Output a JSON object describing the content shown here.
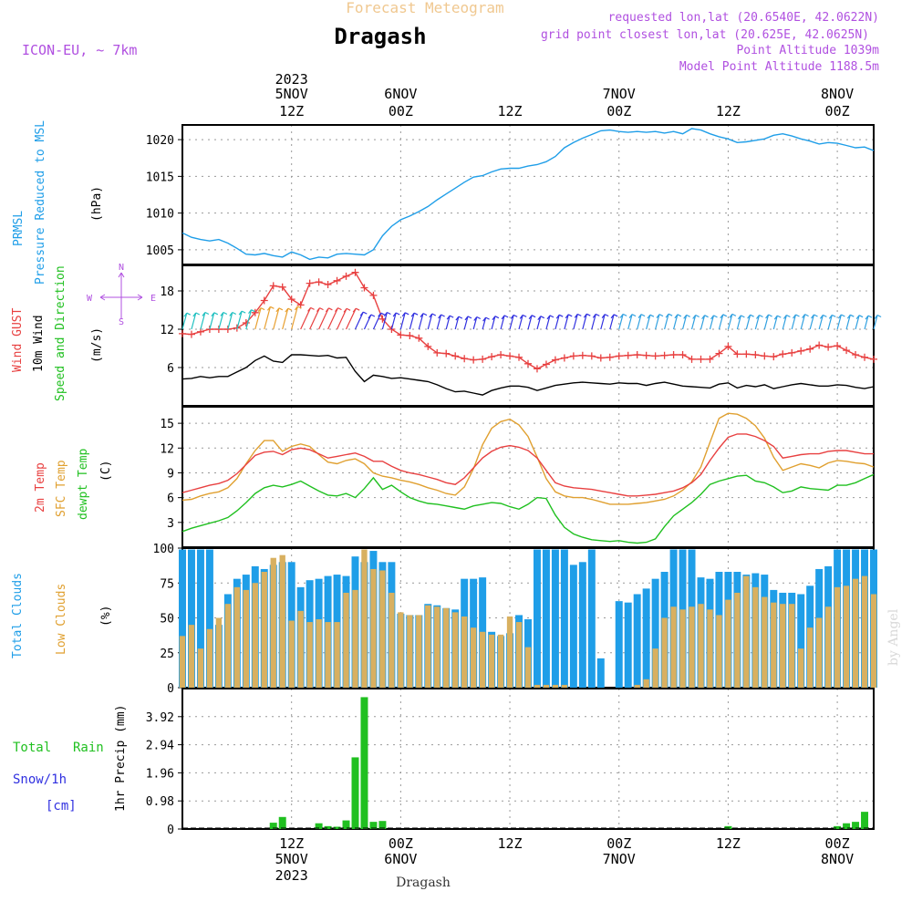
{
  "header": {
    "product_title": "Forecast Meteogram",
    "location": "Dragash",
    "model": "ICON-EU, ~ 7km",
    "requested": "requested lon,lat (20.6540E, 42.0622N)",
    "grid": "grid point closest lon,lat (20.625E, 42.0625N)",
    "point_alt": "Point Altitude 1039m",
    "model_alt": "Model Point Altitude 1188.5m",
    "credit": "by Angel",
    "footer_location": "Dragash"
  },
  "colors": {
    "pressure": "#1f9ee8",
    "gust": "#e84040",
    "wind": "#000000",
    "temp": "#e84040",
    "sfc": "#e0a030",
    "dew": "#20c020",
    "clouds_total": "#1f9ee8",
    "clouds_low": "#d8b060",
    "rain": "#20c020",
    "snow": "#3030e0",
    "header_purple": "#b050e0",
    "header_orange": "#f0c890"
  },
  "top_axis": [
    {
      "t": 12,
      "l1": "2023",
      "l2": "5NOV",
      "l3": "12Z"
    },
    {
      "t": 24,
      "l1": "",
      "l2": "6NOV",
      "l3": "00Z"
    },
    {
      "t": 36,
      "l1": "",
      "l2": "",
      "l3": "12Z"
    },
    {
      "t": 48,
      "l1": "",
      "l2": "7NOV",
      "l3": "00Z"
    },
    {
      "t": 60,
      "l1": "",
      "l2": "",
      "l3": "12Z"
    },
    {
      "t": 72,
      "l1": "",
      "l2": "8NOV",
      "l3": "00Z"
    }
  ],
  "bottom_axis": [
    {
      "t": 12,
      "l1": "12Z",
      "l2": "5NOV",
      "l3": "2023"
    },
    {
      "t": 24,
      "l1": "00Z",
      "l2": "6NOV",
      "l3": ""
    },
    {
      "t": 36,
      "l1": "12Z",
      "l2": "",
      "l3": ""
    },
    {
      "t": 48,
      "l1": "00Z",
      "l2": "7NOV",
      "l3": ""
    },
    {
      "t": 60,
      "l1": "12Z",
      "l2": "",
      "l3": ""
    },
    {
      "t": 72,
      "l1": "00Z",
      "l2": "8NOV",
      "l3": ""
    }
  ],
  "panels": {
    "pressure": {
      "labels": [
        "PRMSL",
        "Pressure Reduced to MSL",
        "(hPa)"
      ]
    },
    "wind": {
      "labels": [
        "Wind GUST",
        "10m Wind",
        "Speed and Direction",
        "(m/s)"
      ],
      "compass": [
        "N",
        "W",
        "E",
        "S"
      ]
    },
    "temp": {
      "labels": [
        "2m Temp",
        "SFC Temp",
        "dewpt Temp",
        "(C)"
      ]
    },
    "clouds": {
      "labels": [
        "Total Clouds",
        "Low Clouds",
        "(%)"
      ]
    },
    "precip": {
      "labels": [
        "Total",
        "Rain",
        "Snow/1h",
        "[cm]",
        "1hr Precip (mm)"
      ]
    }
  },
  "chart_data": [
    {
      "type": "line",
      "title": "PRMSL Pressure Reduced to MSL",
      "ylabel": "(hPa)",
      "x_unit": "forecast hour from 2023-11-05 00Z",
      "xlim": [
        0,
        76
      ],
      "ylim": [
        1003,
        1022
      ],
      "yticks": [
        1005,
        1010,
        1015,
        1020
      ],
      "grid": true,
      "x": [
        0,
        1,
        2,
        3,
        4,
        5,
        6,
        7,
        8,
        9,
        10,
        11,
        12,
        13,
        14,
        15,
        16,
        17,
        18,
        19,
        20,
        21,
        22,
        23,
        24,
        25,
        26,
        27,
        28,
        29,
        30,
        31,
        32,
        33,
        34,
        35,
        36,
        37,
        38,
        39,
        40,
        41,
        42,
        43,
        44,
        45,
        46,
        47,
        48,
        49,
        50,
        51,
        52,
        53,
        54,
        55,
        56,
        57,
        58,
        59,
        60,
        61,
        62,
        63,
        64,
        65,
        66,
        67,
        68,
        69,
        70,
        71,
        72,
        73,
        74,
        75,
        76
      ],
      "series": [
        {
          "name": "PRMSL",
          "values": [
            1007.3,
            1006.7,
            1006.4,
            1006.2,
            1006.4,
            1005.9,
            1005.2,
            1004.4,
            1004.3,
            1004.5,
            1004.2,
            1004.0,
            1004.7,
            1004.3,
            1003.7,
            1004.0,
            1003.9,
            1004.4,
            1004.5,
            1004.4,
            1004.3,
            1005.0,
            1006.9,
            1008.2,
            1009.1,
            1009.6,
            1010.2,
            1010.9,
            1011.8,
            1012.6,
            1013.4,
            1014.2,
            1014.9,
            1015.1,
            1015.6,
            1016.0,
            1016.1,
            1016.1,
            1016.4,
            1016.6,
            1017.0,
            1017.7,
            1018.9,
            1019.6,
            1020.2,
            1020.7,
            1021.2,
            1021.3,
            1021.1,
            1021.0,
            1021.1,
            1021.0,
            1021.1,
            1020.9,
            1021.1,
            1020.8,
            1021.5,
            1021.3,
            1020.8,
            1020.4,
            1020.1,
            1019.6,
            1019.7,
            1019.9,
            1020.1,
            1020.6,
            1020.8,
            1020.5,
            1020.1,
            1019.8,
            1019.4,
            1019.6,
            1019.5,
            1019.2,
            1018.9,
            1019.0,
            1018.5
          ]
        }
      ]
    },
    {
      "type": "line",
      "title": "Wind GUST / 10m Wind Speed and Direction",
      "ylabel": "(m/s)",
      "xlim": [
        0,
        76
      ],
      "ylim": [
        0,
        22
      ],
      "yticks": [
        6,
        12,
        18
      ],
      "grid": true,
      "x": [
        0,
        1,
        2,
        3,
        4,
        5,
        6,
        7,
        8,
        9,
        10,
        11,
        12,
        13,
        14,
        15,
        16,
        17,
        18,
        19,
        20,
        21,
        22,
        23,
        24,
        25,
        26,
        27,
        28,
        29,
        30,
        31,
        32,
        33,
        34,
        35,
        36,
        37,
        38,
        39,
        40,
        41,
        42,
        43,
        44,
        45,
        46,
        47,
        48,
        49,
        50,
        51,
        52,
        53,
        54,
        55,
        56,
        57,
        58,
        59,
        60,
        61,
        62,
        63,
        64,
        65,
        66,
        67,
        68,
        69,
        70,
        71,
        72,
        73,
        74,
        75,
        76
      ],
      "series": [
        {
          "name": "Wind GUST",
          "values": [
            11.3,
            11.2,
            11.6,
            12.0,
            12.0,
            12.0,
            12.2,
            13.0,
            14.6,
            16.5,
            18.8,
            18.6,
            16.7,
            15.8,
            19.2,
            19.4,
            19.0,
            19.6,
            20.3,
            20.9,
            18.5,
            17.3,
            13.6,
            12.0,
            11.1,
            11.0,
            10.6,
            9.3,
            8.3,
            8.2,
            7.8,
            7.4,
            7.2,
            7.3,
            7.7,
            8.0,
            7.8,
            7.6,
            6.6,
            5.8,
            6.5,
            7.2,
            7.5,
            7.8,
            7.9,
            7.8,
            7.5,
            7.6,
            7.8,
            7.9,
            8.0,
            7.9,
            7.8,
            7.9,
            8.0,
            8.0,
            7.3,
            7.3,
            7.3,
            8.2,
            9.3,
            8.1,
            8.1,
            8.0,
            7.8,
            7.7,
            8.1,
            8.3,
            8.6,
            8.9,
            9.5,
            9.2,
            9.4,
            8.7,
            8.0,
            7.6,
            7.3
          ]
        },
        {
          "name": "10m Wind",
          "values": [
            4.2,
            4.3,
            4.6,
            4.4,
            4.6,
            4.6,
            5.3,
            6.0,
            7.1,
            7.8,
            7.0,
            6.8,
            8.0,
            8.0,
            7.9,
            7.8,
            7.9,
            7.5,
            7.6,
            5.4,
            3.8,
            4.8,
            4.6,
            4.3,
            4.4,
            4.2,
            4.0,
            3.8,
            3.3,
            2.7,
            2.2,
            2.3,
            2.0,
            1.7,
            2.4,
            2.8,
            3.1,
            3.1,
            2.9,
            2.4,
            2.8,
            3.2,
            3.4,
            3.6,
            3.7,
            3.6,
            3.5,
            3.4,
            3.6,
            3.5,
            3.5,
            3.2,
            3.5,
            3.7,
            3.4,
            3.1,
            3.0,
            2.9,
            2.8,
            3.4,
            3.6,
            2.8,
            3.2,
            3.0,
            3.3,
            2.7,
            3.0,
            3.3,
            3.5,
            3.3,
            3.1,
            3.1,
            3.3,
            3.2,
            2.9,
            2.7,
            3.0
          ]
        }
      ]
    },
    {
      "type": "line",
      "title": "2m Temp / SFC Temp / dewpt Temp",
      "ylabel": "(C)",
      "xlim": [
        0,
        76
      ],
      "ylim": [
        0,
        17
      ],
      "yticks": [
        3,
        6,
        9,
        12,
        15
      ],
      "grid": true,
      "x": [
        0,
        1,
        2,
        3,
        4,
        5,
        6,
        7,
        8,
        9,
        10,
        11,
        12,
        13,
        14,
        15,
        16,
        17,
        18,
        19,
        20,
        21,
        22,
        23,
        24,
        25,
        26,
        27,
        28,
        29,
        30,
        31,
        32,
        33,
        34,
        35,
        36,
        37,
        38,
        39,
        40,
        41,
        42,
        43,
        44,
        45,
        46,
        47,
        48,
        49,
        50,
        51,
        52,
        53,
        54,
        55,
        56,
        57,
        58,
        59,
        60,
        61,
        62,
        63,
        64,
        65,
        66,
        67,
        68,
        69,
        70,
        71,
        72,
        73,
        74,
        75,
        76
      ],
      "series": [
        {
          "name": "2m Temp",
          "values": [
            6.6,
            6.9,
            7.2,
            7.5,
            7.7,
            8.1,
            8.9,
            10.0,
            11.1,
            11.5,
            11.6,
            11.2,
            11.8,
            12.0,
            11.8,
            11.3,
            10.8,
            11.0,
            11.2,
            11.4,
            11.0,
            10.4,
            10.4,
            9.8,
            9.3,
            9.0,
            8.8,
            8.5,
            8.2,
            7.8,
            7.6,
            8.4,
            9.6,
            10.8,
            11.6,
            12.1,
            12.3,
            12.1,
            11.7,
            10.8,
            9.3,
            7.8,
            7.4,
            7.2,
            7.1,
            7.0,
            6.8,
            6.6,
            6.4,
            6.2,
            6.2,
            6.3,
            6.4,
            6.6,
            6.8,
            7.2,
            7.8,
            8.8,
            10.5,
            12.0,
            13.3,
            13.7,
            13.7,
            13.4,
            12.9,
            12.2,
            10.8,
            11.0,
            11.2,
            11.3,
            11.3,
            11.6,
            11.7,
            11.7,
            11.5,
            11.3,
            11.3
          ]
        },
        {
          "name": "SFC Temp",
          "values": [
            5.7,
            5.8,
            6.2,
            6.5,
            6.7,
            7.2,
            8.3,
            10.1,
            11.7,
            12.9,
            12.9,
            11.6,
            12.2,
            12.5,
            12.2,
            11.2,
            10.3,
            10.1,
            10.5,
            10.7,
            10.1,
            9.0,
            8.6,
            8.4,
            8.1,
            7.9,
            7.6,
            7.2,
            6.9,
            6.5,
            6.3,
            7.3,
            9.5,
            12.4,
            14.4,
            15.2,
            15.5,
            14.8,
            13.4,
            10.9,
            8.3,
            6.7,
            6.2,
            6.0,
            6.0,
            5.8,
            5.5,
            5.2,
            5.2,
            5.2,
            5.3,
            5.4,
            5.6,
            5.8,
            6.2,
            6.9,
            7.9,
            9.7,
            12.7,
            15.6,
            16.2,
            16.1,
            15.6,
            14.7,
            13.2,
            10.9,
            9.3,
            9.7,
            10.1,
            9.9,
            9.6,
            10.2,
            10.5,
            10.4,
            10.2,
            10.1,
            9.7
          ]
        },
        {
          "name": "dewpt Temp",
          "values": [
            1.9,
            2.3,
            2.6,
            2.9,
            3.2,
            3.6,
            4.4,
            5.4,
            6.5,
            7.2,
            7.5,
            7.3,
            7.6,
            8.0,
            7.4,
            6.8,
            6.3,
            6.2,
            6.5,
            6.0,
            7.1,
            8.4,
            7.0,
            7.5,
            6.7,
            6.0,
            5.6,
            5.3,
            5.2,
            5.0,
            4.8,
            4.6,
            5.0,
            5.2,
            5.4,
            5.3,
            4.9,
            4.6,
            5.2,
            6.0,
            5.9,
            3.9,
            2.4,
            1.6,
            1.2,
            0.9,
            0.8,
            0.7,
            0.8,
            0.6,
            0.5,
            0.6,
            1.0,
            2.5,
            3.8,
            4.6,
            5.4,
            6.4,
            7.6,
            8.0,
            8.3,
            8.6,
            8.7,
            8.0,
            7.8,
            7.3,
            6.6,
            6.8,
            7.3,
            7.1,
            7.0,
            6.9,
            7.5,
            7.5,
            7.8,
            8.3,
            8.8
          ]
        }
      ]
    },
    {
      "type": "bar",
      "title": "Total Clouds / Low Clouds",
      "ylabel": "(%)",
      "xlim": [
        0,
        76
      ],
      "ylim": [
        0,
        100
      ],
      "yticks": [
        0,
        25,
        50,
        75,
        100
      ],
      "grid": true,
      "x": [
        0,
        1,
        2,
        3,
        4,
        5,
        6,
        7,
        8,
        9,
        10,
        11,
        12,
        13,
        14,
        15,
        16,
        17,
        18,
        19,
        20,
        21,
        22,
        23,
        24,
        25,
        26,
        27,
        28,
        29,
        30,
        31,
        32,
        33,
        34,
        35,
        36,
        37,
        38,
        39,
        40,
        41,
        42,
        43,
        44,
        45,
        46,
        47,
        48,
        49,
        50,
        51,
        52,
        53,
        54,
        55,
        56,
        57,
        58,
        59,
        60,
        61,
        62,
        63,
        64,
        65,
        66,
        67,
        68,
        69,
        70,
        71,
        72,
        73,
        74,
        75,
        76
      ],
      "series": [
        {
          "name": "Total Clouds",
          "values": [
            99,
            99,
            99,
            99,
            45,
            67,
            78,
            81,
            87,
            85,
            88,
            90,
            90,
            72,
            77,
            78,
            80,
            81,
            80,
            94,
            90,
            98,
            90,
            90,
            53,
            52,
            52,
            60,
            59,
            57,
            56,
            78,
            78,
            79,
            40,
            37,
            39,
            52,
            49,
            99,
            99,
            99,
            99,
            88,
            90,
            99,
            21,
            0,
            62,
            61,
            67,
            71,
            78,
            83,
            99,
            99,
            99,
            79,
            78,
            83,
            83,
            83,
            81,
            82,
            81,
            70,
            68,
            68,
            67,
            73,
            85,
            87,
            99,
            99,
            99,
            99,
            99
          ]
        },
        {
          "name": "Low Clouds",
          "values": [
            37,
            45,
            28,
            42,
            50,
            60,
            72,
            70,
            75,
            83,
            93,
            95,
            48,
            55,
            47,
            49,
            47,
            47,
            68,
            70,
            99,
            85,
            84,
            68,
            54,
            52,
            52,
            59,
            58,
            57,
            54,
            51,
            43,
            40,
            38,
            38,
            51,
            47,
            29,
            2,
            2,
            2,
            2,
            0,
            0,
            0,
            0,
            0,
            0,
            0,
            2,
            6,
            28,
            50,
            58,
            56,
            58,
            60,
            56,
            52,
            63,
            68,
            80,
            72,
            65,
            61,
            60,
            60,
            28,
            43,
            50,
            58,
            72,
            73,
            78,
            80,
            67
          ]
        }
      ]
    },
    {
      "type": "bar",
      "title": "1hr Precip",
      "ylabel": "1hr Precip (mm)",
      "xlim": [
        0,
        76
      ],
      "ylim": [
        0,
        4.9
      ],
      "yticks": [
        0,
        0.98,
        1.96,
        2.94,
        3.92
      ],
      "grid": true,
      "x": [
        10,
        11,
        15,
        16,
        17,
        18,
        19,
        20,
        21,
        22,
        23,
        60,
        72,
        73,
        74,
        75
      ],
      "series": [
        {
          "name": "Total Rain",
          "values": [
            0.22,
            0.42,
            0.2,
            0.1,
            0.08,
            0.3,
            2.5,
            4.6,
            0.25,
            0.28,
            0,
            0.1,
            0.1,
            0.2,
            0.25,
            0.6
          ]
        }
      ]
    }
  ]
}
